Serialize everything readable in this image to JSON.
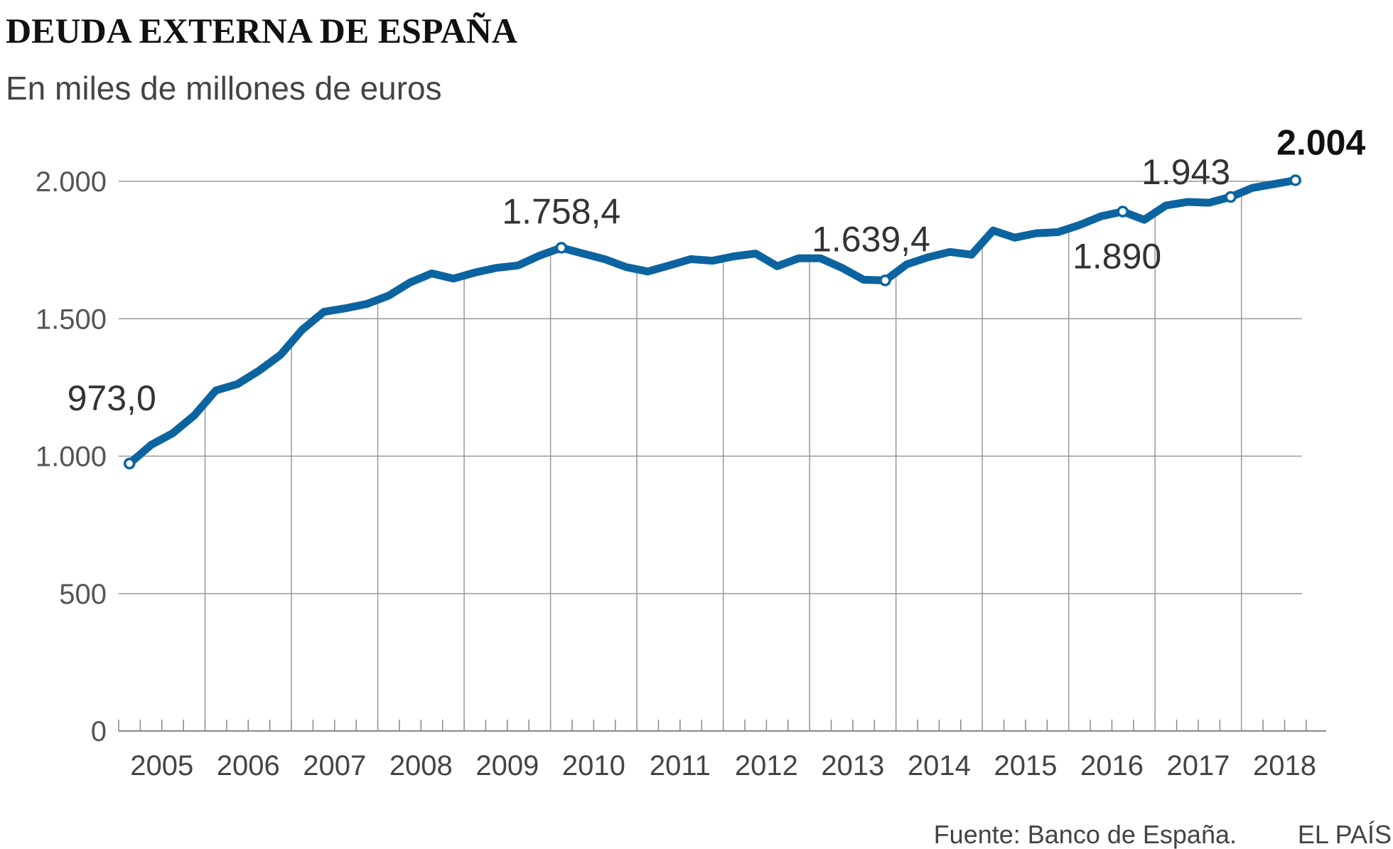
{
  "chart_data": {
    "type": "line",
    "title": "DEUDA EXTERNA DE ESPAÑA",
    "subtitle": "En miles de millones de euros",
    "source": "Fuente: Banco de España.",
    "brand": "EL PAÍS",
    "categories": [
      "2005",
      null,
      null,
      null,
      "2006",
      null,
      null,
      null,
      "2007",
      null,
      null,
      null,
      "2008",
      null,
      null,
      null,
      "2009",
      null,
      null,
      null,
      "2010",
      null,
      null,
      null,
      "2011",
      null,
      null,
      null,
      "2012",
      null,
      null,
      null,
      "2013",
      null,
      null,
      null,
      "2014",
      null,
      null,
      null,
      "2015",
      null,
      null,
      null,
      "2016",
      null,
      null,
      null,
      "2017",
      null,
      null,
      null,
      "2018",
      null,
      null
    ],
    "values": [
      973,
      1041,
      1083,
      1148,
      1239,
      1262,
      1311,
      1369,
      1460,
      1525,
      1538,
      1554,
      1584,
      1632,
      1665,
      1646,
      1668,
      1685,
      1694,
      1730,
      1758.4,
      1737,
      1717,
      1688,
      1672,
      1694,
      1717,
      1711,
      1727,
      1737,
      1691,
      1720,
      1720,
      1685,
      1642,
      1639.4,
      1698,
      1724,
      1743,
      1733,
      1821,
      1795,
      1811,
      1815,
      1841,
      1873,
      1890,
      1860,
      1912,
      1925,
      1922,
      1943,
      1976,
      1990,
      2004
    ],
    "value_labels": [
      "973,0",
      null,
      null,
      null,
      null,
      null,
      null,
      null,
      null,
      null,
      null,
      null,
      null,
      null,
      null,
      null,
      null,
      null,
      null,
      null,
      "1.758,4",
      null,
      null,
      null,
      null,
      null,
      null,
      null,
      null,
      null,
      null,
      null,
      null,
      null,
      null,
      "1.639,4",
      null,
      null,
      null,
      null,
      null,
      null,
      null,
      null,
      null,
      null,
      "1.890",
      null,
      null,
      null,
      null,
      "1.943",
      null,
      null,
      "2.004"
    ],
    "color": "#0b64a0",
    "ylim": [
      0,
      2000
    ],
    "yticks": [
      0,
      500,
      {
        "value": 1000,
        "label": "1.000"
      },
      {
        "value": 1500,
        "label": "1.500"
      },
      {
        "value": 2000,
        "label": "2.000"
      }
    ],
    "grid": true
  }
}
